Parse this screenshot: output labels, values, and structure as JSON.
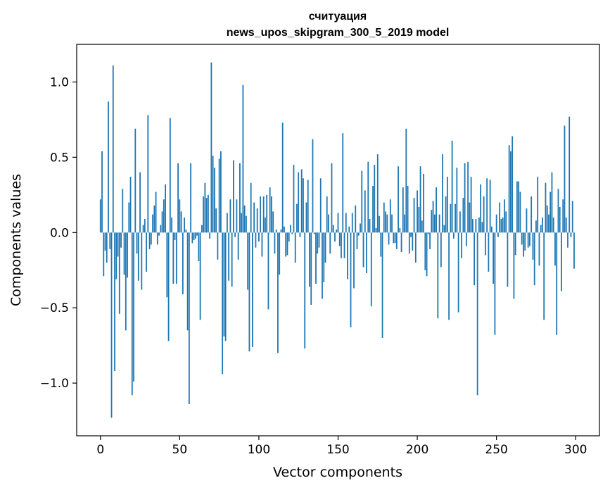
{
  "chart_data": {
    "type": "bar",
    "title": "считуация",
    "subtitle": "news_upos_skipgram_300_5_2019 model",
    "xlabel": "Vector components",
    "ylabel": "Components values",
    "xlim": [
      -15,
      315
    ],
    "ylim": [
      -1.35,
      1.25
    ],
    "xticks": [
      0,
      50,
      100,
      150,
      200,
      250,
      300
    ],
    "yticks": [
      -1.0,
      -0.5,
      0.0,
      0.5,
      1.0
    ],
    "ytick_labels": [
      "−1.0",
      "−0.5",
      "0.0",
      "0.5",
      "1.0"
    ],
    "bar_color": "#1f77b4",
    "grid": false,
    "x": [
      0,
      1,
      2,
      3,
      4,
      5,
      6,
      7,
      8,
      9,
      10,
      11,
      12,
      13,
      14,
      15,
      16,
      17,
      18,
      19,
      20,
      21,
      22,
      23,
      24,
      25,
      26,
      27,
      28,
      29,
      30,
      31,
      32,
      33,
      34,
      35,
      36,
      37,
      38,
      39,
      40,
      41,
      42,
      43,
      44,
      45,
      46,
      47,
      48,
      49,
      50,
      51,
      52,
      53,
      54,
      55,
      56,
      57,
      58,
      59,
      60,
      61,
      62,
      63,
      64,
      65,
      66,
      67,
      68,
      69,
      70,
      71,
      72,
      73,
      74,
      75,
      76,
      77,
      78,
      79,
      80,
      81,
      82,
      83,
      84,
      85,
      86,
      87,
      88,
      89,
      90,
      91,
      92,
      93,
      94,
      95,
      96,
      97,
      98,
      99,
      100,
      101,
      102,
      103,
      104,
      105,
      106,
      107,
      108,
      109,
      110,
      111,
      112,
      113,
      114,
      115,
      116,
      117,
      118,
      119,
      120,
      121,
      122,
      123,
      124,
      125,
      126,
      127,
      128,
      129,
      130,
      131,
      132,
      133,
      134,
      135,
      136,
      137,
      138,
      139,
      140,
      141,
      142,
      143,
      144,
      145,
      146,
      147,
      148,
      149,
      150,
      151,
      152,
      153,
      154,
      155,
      156,
      157,
      158,
      159,
      160,
      161,
      162,
      163,
      164,
      165,
      166,
      167,
      168,
      169,
      170,
      171,
      172,
      173,
      174,
      175,
      176,
      177,
      178,
      179,
      180,
      181,
      182,
      183,
      184,
      185,
      186,
      187,
      188,
      189,
      190,
      191,
      192,
      193,
      194,
      195,
      196,
      197,
      198,
      199,
      200,
      201,
      202,
      203,
      204,
      205,
      206,
      207,
      208,
      209,
      210,
      211,
      212,
      213,
      214,
      215,
      216,
      217,
      218,
      219,
      220,
      221,
      222,
      223,
      224,
      225,
      226,
      227,
      228,
      229,
      230,
      231,
      232,
      233,
      234,
      235,
      236,
      237,
      238,
      239,
      240,
      241,
      242,
      243,
      244,
      245,
      246,
      247,
      248,
      249,
      250,
      251,
      252,
      253,
      254,
      255,
      256,
      257,
      258,
      259,
      260,
      261,
      262,
      263,
      264,
      265,
      266,
      267,
      268,
      269,
      270,
      271,
      272,
      273,
      274,
      275,
      276,
      277,
      278,
      279,
      280,
      281,
      282,
      283,
      284,
      285,
      286,
      287,
      288,
      289,
      290,
      291,
      292,
      293,
      294,
      295,
      296,
      297,
      298,
      299
    ],
    "values": [
      0.22,
      0.54,
      -0.29,
      -0.12,
      -0.2,
      0.87,
      -0.11,
      -1.23,
      1.11,
      -0.92,
      -0.31,
      -0.16,
      -0.54,
      -0.1,
      0.29,
      -0.28,
      -0.65,
      -0.3,
      0.2,
      0.37,
      -1.08,
      -0.99,
      0.69,
      -0.14,
      -0.32,
      0.4,
      -0.38,
      0.05,
      0.09,
      -0.26,
      0.78,
      -0.11,
      -0.08,
      0.12,
      0.18,
      0.27,
      -0.08,
      -0.02,
      0.05,
      0.14,
      0.22,
      0.32,
      -0.43,
      -0.72,
      0.76,
      0.1,
      -0.34,
      -0.05,
      -0.34,
      0.46,
      0.22,
      0.14,
      -0.41,
      0.1,
      0.02,
      -0.65,
      -1.14,
      0.46,
      -0.07,
      -0.05,
      -0.04,
      -0.02,
      -0.19,
      -0.58,
      0.05,
      0.24,
      0.33,
      0.23,
      0.25,
      -0.04,
      1.13,
      0.51,
      0.43,
      0.16,
      -0.18,
      0.49,
      0.54,
      -0.94,
      -0.69,
      -0.72,
      0.13,
      -0.32,
      0.22,
      -0.36,
      0.48,
      -0.03,
      0.22,
      -0.18,
      0.46,
      0.13,
      0.98,
      0.18,
      0.11,
      -0.38,
      -0.79,
      0.33,
      -0.76,
      0.2,
      -0.1,
      0.16,
      -0.06,
      0.24,
      -0.16,
      0.24,
      0.1,
      0.25,
      -0.51,
      0.3,
      0.24,
      0.14,
      -0.14,
      0.02,
      -0.8,
      -0.28,
      0.02,
      0.73,
      0.04,
      -0.16,
      -0.15,
      -0.06,
      0.05,
      -0.01,
      0.45,
      -0.2,
      0.19,
      0.4,
      -0.03,
      0.42,
      0.36,
      -0.77,
      0.2,
      0.35,
      -0.36,
      -0.48,
      0.62,
      -0.01,
      -0.34,
      -0.14,
      -0.1,
      0.36,
      -0.44,
      -0.33,
      -0.2,
      0.24,
      0.12,
      -0.14,
      0.46,
      0.05,
      -0.06,
      0.02,
      0.13,
      -0.09,
      -0.17,
      0.66,
      -0.17,
      0.13,
      -0.31,
      0.04,
      -0.63,
      0.13,
      -0.37,
      0.18,
      -0.11,
      -0.02,
      0.06,
      0.41,
      -0.23,
      0.28,
      -0.27,
      0.47,
      0.09,
      -0.49,
      0.31,
      0.45,
      0.03,
      0.52,
      0.11,
      -0.16,
      -0.7,
      0.2,
      0.14,
      0.12,
      -0.08,
      0.22,
      0.12,
      -0.07,
      -0.07,
      -0.11,
      0.44,
      0.03,
      -0.13,
      0.3,
      0.12,
      0.69,
      0.31,
      -0.14,
      -0.03,
      -0.12,
      0.23,
      -0.2,
      0.28,
      0.17,
      0.44,
      0.08,
      0.39,
      -0.25,
      -0.29,
      -0.01,
      -0.11,
      0.15,
      0.21,
      0.12,
      0.3,
      -0.57,
      0.12,
      -0.23,
      0.52,
      0.05,
      0.24,
      0.37,
      -0.58,
      0.19,
      0.61,
      -0.04,
      0.19,
      0.43,
      -0.53,
      0.14,
      -0.17,
      0.23,
      0.46,
      -0.09,
      0.47,
      0.2,
      0.37,
      0.09,
      -0.35,
      0.09,
      -1.08,
      0.1,
      0.32,
      0.07,
      0.24,
      -0.15,
      0.36,
      -0.26,
      0.35,
      0.04,
      -0.34,
      -0.68,
      0.12,
      -0.03,
      0.2,
      0.09,
      0.1,
      0.22,
      0.14,
      -0.36,
      0.58,
      0.54,
      0.64,
      -0.44,
      -0.15,
      0.34,
      0.34,
      0.27,
      -0.08,
      -0.16,
      -0.12,
      0.16,
      -0.1,
      -0.09,
      0.24,
      -0.18,
      -0.35,
      0.08,
      0.37,
      -0.22,
      0.05,
      0.1,
      -0.58,
      0.33,
      0.18,
      0.12,
      0.27,
      0.4,
      0.1,
      -0.22,
      -0.68,
      0.29,
      0.17,
      -0.39,
      0.22,
      0.71,
      0.1,
      -0.1,
      0.77,
      -0.03,
      0.21,
      -0.24
    ]
  }
}
